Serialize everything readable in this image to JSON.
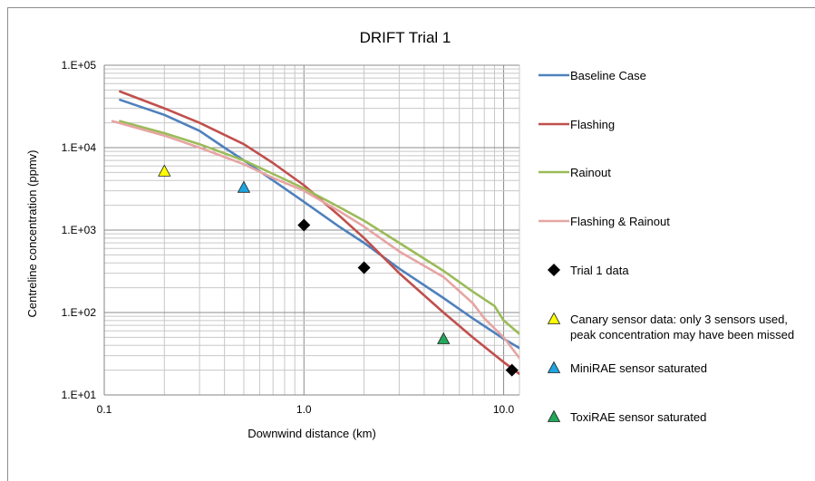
{
  "chart_data": {
    "type": "line",
    "title": "DRIFT Trial 1",
    "xlabel": "Downwind distance (km)",
    "ylabel": "Centreline concentration (ppmv)",
    "xscale": "log",
    "yscale": "log",
    "xlim": [
      0.1,
      12
    ],
    "ylim": [
      10,
      100000
    ],
    "x_ticks": [
      0.1,
      1.0,
      10.0
    ],
    "x_tick_labels": [
      "0.1",
      "1.0",
      "10.0"
    ],
    "y_ticks": [
      10,
      100,
      1000,
      10000,
      100000
    ],
    "y_tick_labels": [
      "1.E+01",
      "1.E+02",
      "1.E+03",
      "1.E+04",
      "1.E+05"
    ],
    "grid": true,
    "legend_position": "right",
    "series": [
      {
        "name": "Baseline Case",
        "kind": "line",
        "color": "#4f81bd",
        "x": [
          0.12,
          0.2,
          0.3,
          0.4,
          0.5,
          0.7,
          1.0,
          1.5,
          2.0,
          3.0,
          5.0,
          7.0,
          10.0,
          12.0
        ],
        "y": [
          38000,
          25000,
          16000,
          10000,
          7000,
          4000,
          2200,
          1100,
          700,
          340,
          150,
          85,
          48,
          37
        ]
      },
      {
        "name": "Flashing",
        "kind": "line",
        "color": "#c0504d",
        "x": [
          0.12,
          0.2,
          0.3,
          0.5,
          0.7,
          1.0,
          1.5,
          2.0,
          3.0,
          5.0,
          7.0,
          10.0,
          12.0
        ],
        "y": [
          48000,
          30000,
          20000,
          11000,
          6500,
          3500,
          1500,
          800,
          300,
          100,
          50,
          25,
          18
        ]
      },
      {
        "name": "Rainout",
        "kind": "line",
        "color": "#9bbb59",
        "x": [
          0.12,
          0.2,
          0.3,
          0.5,
          0.7,
          1.0,
          1.5,
          2.0,
          3.0,
          5.0,
          7.0,
          9.0,
          10.0,
          12.0
        ],
        "y": [
          21000,
          15000,
          11000,
          7000,
          4800,
          3200,
          1900,
          1300,
          700,
          320,
          180,
          120,
          80,
          55
        ]
      },
      {
        "name": "Flashing & Rainout",
        "kind": "line",
        "color": "#e6a5a3",
        "x": [
          0.11,
          0.2,
          0.3,
          0.5,
          0.7,
          1.0,
          1.5,
          2.0,
          3.0,
          5.0,
          7.0,
          8.0,
          10.0,
          12.0
        ],
        "y": [
          21000,
          14000,
          10000,
          6300,
          4300,
          3000,
          1700,
          1100,
          550,
          270,
          130,
          85,
          50,
          28
        ]
      },
      {
        "name": "Trial 1 data",
        "kind": "marker",
        "marker": "diamond",
        "color": "#000000",
        "x": [
          1.0,
          2.0,
          11.0
        ],
        "y": [
          1150,
          350,
          20
        ]
      },
      {
        "name": "Canary sensor data: only 3 sensors used, peak concentration may have been missed",
        "kind": "marker",
        "marker": "triangle",
        "color": "#ffff00",
        "x": [
          0.2
        ],
        "y": [
          5200
        ]
      },
      {
        "name": "MiniRAE sensor saturated",
        "kind": "marker",
        "marker": "triangle",
        "color": "#1ea5e0",
        "x": [
          0.5
        ],
        "y": [
          3300
        ]
      },
      {
        "name": "ToxiRAE sensor saturated",
        "kind": "marker",
        "marker": "triangle",
        "color": "#22a85a",
        "x": [
          5.0
        ],
        "y": [
          48
        ]
      }
    ]
  }
}
